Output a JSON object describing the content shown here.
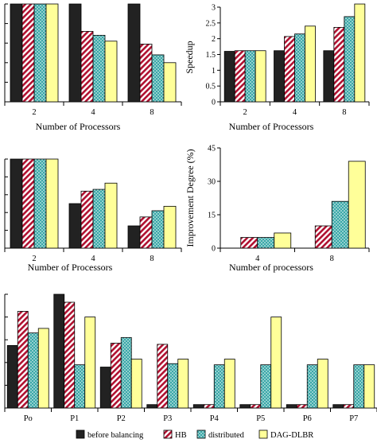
{
  "series_styles": [
    {
      "key": "before",
      "fill": "#222222",
      "pattern": "solid"
    },
    {
      "key": "hb",
      "fill": "#b01030",
      "pattern": "diagonal-hatch"
    },
    {
      "key": "distributed",
      "fill": "#3aa8a8",
      "pattern": "dots"
    },
    {
      "key": "dagdlbr",
      "fill": "#ffff99",
      "pattern": "solid"
    }
  ],
  "legend": {
    "items": [
      "before balancing",
      "HB",
      "distributed",
      "DAG-DLBR"
    ],
    "position": "bottom"
  },
  "chart_data": [
    {
      "id": "chart-a",
      "type": "bar",
      "title": "",
      "xlabel": "Number of Processors",
      "ylabel": "",
      "categories": [
        "2",
        "4",
        "8"
      ],
      "series": [
        {
          "values": [
            1.0,
            1.0,
            1.0
          ]
        },
        {
          "values": [
            1.0,
            0.72,
            0.59
          ]
        },
        {
          "values": [
            1.0,
            0.68,
            0.48
          ]
        },
        {
          "values": [
            1.0,
            0.62,
            0.4
          ]
        }
      ],
      "ylim": [
        0,
        1.0
      ],
      "yticks": [],
      "grid": false
    },
    {
      "id": "chart-b",
      "type": "bar",
      "title": "",
      "xlabel": "Number of Processors",
      "ylabel": "Speedup",
      "categories": [
        "2",
        "4",
        "8"
      ],
      "series": [
        {
          "values": [
            1.6,
            1.62,
            1.62
          ]
        },
        {
          "values": [
            1.62,
            2.07,
            2.36
          ]
        },
        {
          "values": [
            1.62,
            2.15,
            2.7
          ]
        },
        {
          "values": [
            1.62,
            2.4,
            3.1
          ]
        }
      ],
      "ylim": [
        0,
        3.0
      ],
      "yticks": [
        "0",
        "0.5",
        "1",
        "1.5",
        "2",
        "2.5",
        "3"
      ],
      "grid": false
    },
    {
      "id": "chart-c",
      "type": "bar",
      "title": "",
      "xlabel": "Number of Processors",
      "ylabel": "",
      "categories": [
        "2",
        "4",
        "8"
      ],
      "series": [
        {
          "values": [
            1.0,
            0.5,
            0.25
          ]
        },
        {
          "values": [
            1.0,
            0.64,
            0.35
          ]
        },
        {
          "values": [
            1.0,
            0.66,
            0.42
          ]
        },
        {
          "values": [
            1.0,
            0.73,
            0.47
          ]
        }
      ],
      "ylim": [
        0,
        1.0
      ],
      "yticks": [],
      "grid": false
    },
    {
      "id": "chart-d",
      "type": "bar",
      "title": "",
      "xlabel": "Number of processors",
      "ylabel": "Improvement Degree (%)",
      "categories": [
        "4",
        "8"
      ],
      "series": [
        {
          "values": [
            0,
            0
          ]
        },
        {
          "values": [
            4.8,
            10.0
          ]
        },
        {
          "values": [
            4.8,
            21.0
          ]
        },
        {
          "values": [
            6.8,
            39.0
          ]
        }
      ],
      "ylim": [
        0,
        45
      ],
      "yticks": [
        "0",
        "15",
        "30",
        "45"
      ],
      "grid": false
    },
    {
      "id": "chart-e",
      "type": "bar",
      "title": "",
      "xlabel": "",
      "ylabel": "",
      "categories": [
        "Po",
        "P1",
        "P2",
        "P3",
        "P4",
        "P5",
        "P6",
        "P7"
      ],
      "series": [
        {
          "values": [
            0.55,
            1.0,
            0.36,
            0.03,
            0.03,
            0.03,
            0.03,
            0.03
          ]
        },
        {
          "values": [
            0.85,
            0.93,
            0.57,
            0.56,
            0.03,
            0.03,
            0.03,
            0.03
          ]
        },
        {
          "values": [
            0.66,
            0.38,
            0.62,
            0.39,
            0.38,
            0.38,
            0.38,
            0.38
          ]
        },
        {
          "values": [
            0.7,
            0.8,
            0.43,
            0.43,
            0.43,
            0.8,
            0.43,
            0.38
          ]
        }
      ],
      "ylim": [
        0,
        1.0
      ],
      "yticks": [],
      "grid": false
    }
  ]
}
